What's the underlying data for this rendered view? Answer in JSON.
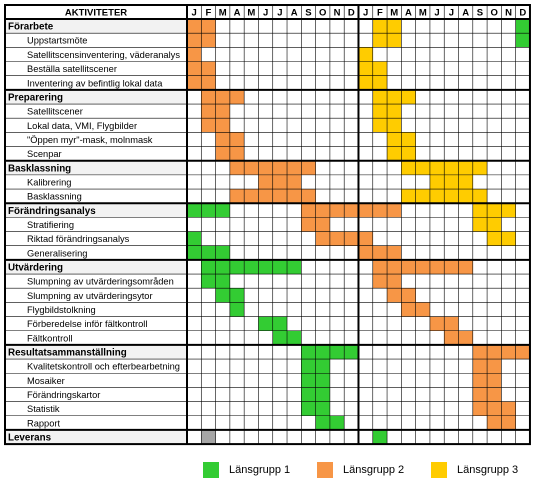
{
  "header": {
    "activities_label": "AKTIVITETER",
    "months": [
      "J",
      "F",
      "M",
      "A",
      "M",
      "J",
      "J",
      "A",
      "S",
      "O",
      "N",
      "D",
      "J",
      "F",
      "M",
      "A",
      "M",
      "J",
      "J",
      "A",
      "S",
      "O",
      "N",
      "D"
    ]
  },
  "colors": {
    "green": "#33cc33",
    "orange": "#f79646",
    "yellow": "#ffcc00",
    "gray": "#a6a6a6",
    "section_bg": "#f2f2f2",
    "grid": "#000000"
  },
  "rows": [
    {
      "label": "Förarbete",
      "section": true,
      "cells": {
        "o": [
          0,
          1
        ],
        "y": [
          13,
          14
        ],
        "g": [
          23
        ]
      }
    },
    {
      "label": "Uppstartsmöte",
      "section": false,
      "cells": {
        "o": [
          0,
          1
        ],
        "y": [
          13,
          14
        ],
        "g": [
          23
        ]
      }
    },
    {
      "label": "Satellitscensinventering, väderanalys",
      "section": false,
      "cells": {
        "o": [
          0
        ],
        "y": [
          12
        ]
      }
    },
    {
      "label": "Beställa satellitscener",
      "section": false,
      "cells": {
        "o": [
          0,
          1
        ],
        "y": [
          12,
          13
        ]
      }
    },
    {
      "label": "Inventering av befintlig lokal data",
      "section": false,
      "cells": {
        "o": [
          0,
          1
        ],
        "y": [
          12,
          13
        ]
      }
    },
    {
      "label": "Preparering",
      "section": true,
      "cells": {
        "o": [
          1,
          2,
          3
        ],
        "y": [
          13,
          14,
          15
        ]
      }
    },
    {
      "label": "Satellitscener",
      "section": false,
      "cells": {
        "o": [
          1,
          2
        ],
        "y": [
          13,
          14
        ]
      }
    },
    {
      "label": "Lokal data, VMI, Flygbilder",
      "section": false,
      "cells": {
        "o": [
          1,
          2
        ],
        "y": [
          13,
          14
        ]
      }
    },
    {
      "label": "\"Öppen myr\"-mask, molnmask",
      "section": false,
      "cells": {
        "o": [
          2,
          3
        ],
        "y": [
          14,
          15
        ]
      }
    },
    {
      "label": "Scenpar",
      "section": false,
      "cells": {
        "o": [
          2,
          3
        ],
        "y": [
          14,
          15
        ]
      }
    },
    {
      "label": "Basklassning",
      "section": true,
      "cells": {
        "o": [
          3,
          4,
          5,
          6,
          7,
          8
        ],
        "y": [
          15,
          16,
          17,
          18,
          19,
          20
        ]
      }
    },
    {
      "label": "Kalibrering",
      "section": false,
      "cells": {
        "o": [
          5,
          6,
          7
        ],
        "y": [
          17,
          18,
          19
        ]
      }
    },
    {
      "label": "Basklassning",
      "section": false,
      "cells": {
        "o": [
          3,
          4,
          5,
          6,
          7,
          8
        ],
        "y": [
          15,
          16,
          17,
          18,
          19,
          20
        ]
      }
    },
    {
      "label": "Förändringsanalys",
      "section": true,
      "cells": {
        "g": [
          0,
          1,
          2
        ],
        "o": [
          8,
          9,
          10,
          11,
          12,
          13,
          14
        ],
        "y": [
          20,
          21,
          22
        ]
      }
    },
    {
      "label": "Stratifiering",
      "section": false,
      "cells": {
        "o": [
          8,
          9
        ],
        "y": [
          20,
          21
        ]
      }
    },
    {
      "label": "Riktad förändringsanalys",
      "section": false,
      "cells": {
        "g": [
          0
        ],
        "o": [
          9,
          10,
          11,
          12
        ],
        "y": [
          21,
          22
        ]
      }
    },
    {
      "label": "Generalisering",
      "section": false,
      "cells": {
        "g": [
          0,
          1,
          2
        ],
        "o": [
          12,
          13,
          14
        ]
      }
    },
    {
      "label": "Utvärdering",
      "section": true,
      "cells": {
        "g": [
          1,
          2,
          3,
          4,
          5,
          6,
          7
        ],
        "o": [
          13,
          14,
          15,
          16,
          17,
          18,
          19
        ]
      }
    },
    {
      "label": "Slumpning av utvärderingsområden",
      "section": false,
      "cells": {
        "g": [
          1,
          2
        ],
        "o": [
          13,
          14
        ]
      }
    },
    {
      "label": "Slumpning av utvärderingsytor",
      "section": false,
      "cells": {
        "g": [
          2,
          3
        ],
        "o": [
          14,
          15
        ]
      }
    },
    {
      "label": "Flygbildstolkning",
      "section": false,
      "cells": {
        "g": [
          3
        ],
        "o": [
          15,
          16
        ]
      }
    },
    {
      "label": "Förberedelse inför fältkontroll",
      "section": false,
      "cells": {
        "g": [
          5,
          6
        ],
        "o": [
          17,
          18
        ]
      }
    },
    {
      "label": "Fältkontroll",
      "section": false,
      "cells": {
        "g": [
          6,
          7
        ],
        "o": [
          18,
          19
        ]
      }
    },
    {
      "label": "Resultatsammanställning",
      "section": true,
      "cells": {
        "g": [
          8,
          9,
          10,
          11
        ],
        "o": [
          20,
          21,
          22,
          23
        ]
      }
    },
    {
      "label": "Kvalitetskontroll och efterbearbetning",
      "section": false,
      "cells": {
        "g": [
          8,
          9
        ],
        "o": [
          20,
          21
        ]
      }
    },
    {
      "label": "Mosaiker",
      "section": false,
      "cells": {
        "g": [
          8,
          9
        ],
        "o": [
          20,
          21
        ]
      }
    },
    {
      "label": "Förändringskartor",
      "section": false,
      "cells": {
        "g": [
          8,
          9
        ],
        "o": [
          20,
          21
        ]
      }
    },
    {
      "label": "Statistik",
      "section": false,
      "cells": {
        "g": [
          8,
          9
        ],
        "o": [
          20,
          21,
          22
        ]
      }
    },
    {
      "label": "Rapport",
      "section": false,
      "cells": {
        "g": [
          9,
          10
        ],
        "o": [
          21,
          22
        ]
      }
    },
    {
      "label": "Leverans",
      "section": true,
      "cells": {
        "gray": [
          1
        ],
        "g": [
          13
        ]
      }
    }
  ],
  "legend": [
    {
      "key": "g",
      "label": "Länsgrupp 1"
    },
    {
      "key": "o",
      "label": "Länsgrupp 2"
    },
    {
      "key": "y",
      "label": "Länsgrupp 3"
    }
  ]
}
